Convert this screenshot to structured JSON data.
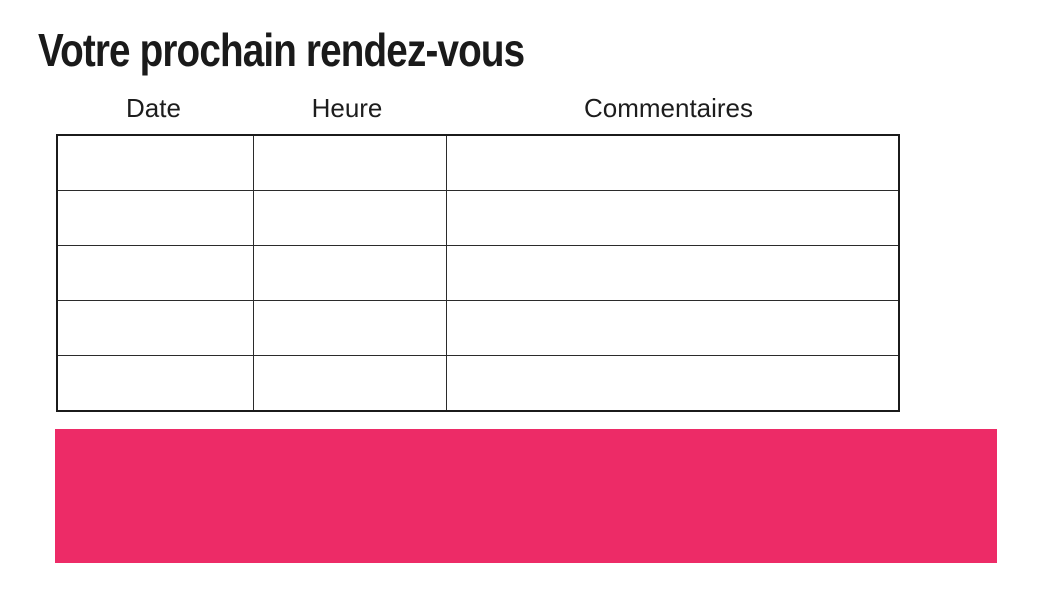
{
  "page": {
    "title": "Votre prochain rendez-vous",
    "background": "#FFFFFF"
  },
  "table": {
    "columns": [
      "Date",
      "Heure",
      "Commentaires"
    ],
    "rows": [
      [
        "",
        "",
        ""
      ],
      [
        "",
        "",
        ""
      ],
      [
        "",
        "",
        ""
      ],
      [
        "",
        "",
        ""
      ],
      [
        "",
        "",
        ""
      ]
    ]
  },
  "banner": {
    "text": ""
  },
  "colors": {
    "accent_pink": "#ED2B67",
    "text": "#1A1A1A",
    "table_border": "#1B1B1B"
  }
}
